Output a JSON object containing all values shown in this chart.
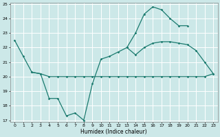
{
  "xlabel": "Humidex (Indice chaleur)",
  "x": [
    0,
    1,
    2,
    3,
    4,
    5,
    6,
    7,
    8,
    9,
    10,
    11,
    12,
    13,
    14,
    15,
    16,
    17,
    18,
    19,
    20,
    21,
    22,
    23
  ],
  "line_flat": [
    22.5,
    21.4,
    20.3,
    20.2,
    20.0,
    20.0,
    20.0,
    20.0,
    20.0,
    20.0,
    20.0,
    20.0,
    20.0,
    20.0,
    20.0,
    20.0,
    20.0,
    20.0,
    20.0,
    20.0,
    20.0,
    20.0,
    20.0,
    20.2
  ],
  "line_wavy": [
    null,
    null,
    20.3,
    20.2,
    18.5,
    18.5,
    17.3,
    17.5,
    17.0,
    19.5,
    21.2,
    21.4,
    21.7,
    22.0,
    21.5,
    22.0,
    22.3,
    22.4,
    22.4,
    22.3,
    22.2,
    21.8,
    21.0,
    20.2
  ],
  "line_top": [
    null,
    null,
    null,
    null,
    null,
    null,
    null,
    null,
    null,
    null,
    null,
    null,
    null,
    22.0,
    23.0,
    24.3,
    24.8,
    24.6,
    24.0,
    23.5,
    23.5,
    null,
    null,
    null
  ],
  "line_upper_mid": [
    null,
    null,
    null,
    null,
    null,
    null,
    null,
    null,
    null,
    null,
    21.2,
    21.4,
    21.9,
    22.2,
    23.0,
    24.3,
    24.8,
    24.6,
    24.0,
    23.5,
    22.3,
    21.8,
    21.0,
    20.2
  ],
  "color": "#1a7a6e",
  "bg_color": "#cce8e8",
  "grid_color": "#ffffff",
  "ylim": [
    17,
    25
  ],
  "xlim": [
    -0.5,
    23.5
  ],
  "yticks": [
    17,
    18,
    19,
    20,
    21,
    22,
    23,
    24,
    25
  ],
  "xticks": [
    0,
    1,
    2,
    3,
    4,
    5,
    6,
    7,
    8,
    9,
    10,
    11,
    12,
    13,
    14,
    15,
    16,
    17,
    18,
    19,
    20,
    21,
    22,
    23
  ]
}
